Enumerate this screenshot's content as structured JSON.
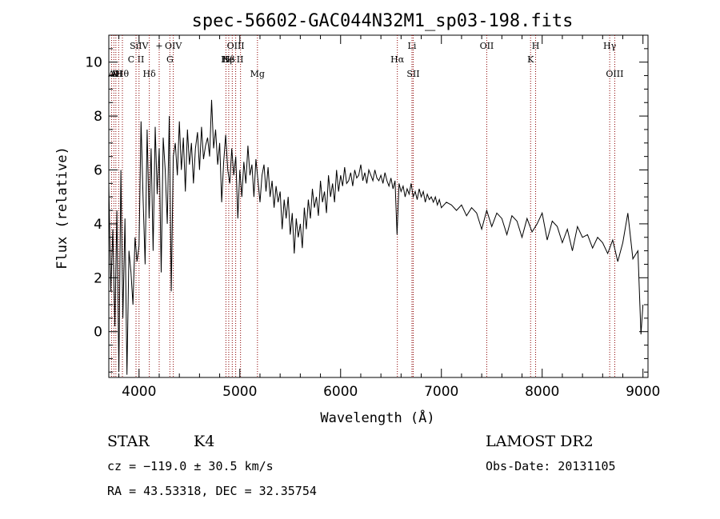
{
  "chart_data": {
    "type": "line",
    "title": "spec-56602-GAC044N32M1_sp03-198.fits",
    "xlabel": "Wavelength (Å)",
    "ylabel": "Flux (relative)",
    "xlim": [
      3700,
      9050
    ],
    "ylim": [
      -1.7,
      11.0
    ],
    "xticks": [
      4000,
      5000,
      6000,
      7000,
      8000,
      9000
    ],
    "yticks": [
      0,
      2,
      4,
      6,
      8,
      10
    ],
    "series": [
      {
        "x": [
          3700,
          3720,
          3740,
          3760,
          3780,
          3800,
          3820,
          3840,
          3860,
          3880,
          3900,
          3920,
          3940,
          3960,
          3980,
          4000,
          4020,
          4040,
          4060,
          4080,
          4100,
          4120,
          4140,
          4160,
          4180,
          4200,
          4220,
          4240,
          4260,
          4280,
          4300,
          4320,
          4340,
          4360,
          4380,
          4400,
          4420,
          4440,
          4460,
          4480,
          4500,
          4520,
          4540,
          4560,
          4580,
          4600,
          4620,
          4640,
          4660,
          4680,
          4700,
          4720,
          4740,
          4760,
          4780,
          4800,
          4820,
          4840,
          4860,
          4880,
          4900,
          4920,
          4940,
          4960,
          4980,
          5000,
          5020,
          5040,
          5060,
          5080,
          5100,
          5120,
          5140,
          5160,
          5180,
          5200,
          5220,
          5240,
          5260,
          5280,
          5300,
          5320,
          5340,
          5360,
          5380,
          5400,
          5420,
          5440,
          5460,
          5480,
          5500,
          5520,
          5540,
          5560,
          5580,
          5600,
          5620,
          5640,
          5660,
          5680,
          5700,
          5720,
          5740,
          5760,
          5780,
          5800,
          5820,
          5840,
          5860,
          5880,
          5900,
          5920,
          5940,
          5960,
          5980,
          6000,
          6020,
          6040,
          6060,
          6080,
          6100,
          6120,
          6140,
          6160,
          6180,
          6200,
          6220,
          6240,
          6260,
          6280,
          6300,
          6320,
          6340,
          6360,
          6380,
          6400,
          6420,
          6440,
          6460,
          6480,
          6500,
          6520,
          6540,
          6560,
          6580,
          6600,
          6620,
          6640,
          6660,
          6680,
          6700,
          6720,
          6740,
          6760,
          6780,
          6800,
          6820,
          6840,
          6860,
          6880,
          6900,
          6920,
          6940,
          6960,
          6980,
          7000,
          7050,
          7100,
          7150,
          7200,
          7250,
          7300,
          7350,
          7400,
          7450,
          7500,
          7550,
          7600,
          7650,
          7700,
          7750,
          7800,
          7850,
          7900,
          7950,
          8000,
          8050,
          8100,
          8150,
          8200,
          8250,
          8300,
          8350,
          8400,
          8450,
          8500,
          8550,
          8600,
          8650,
          8700,
          8750,
          8800,
          8850,
          8900,
          8950,
          8980,
          9000
        ],
        "y": [
          5.5,
          1.5,
          3.8,
          0.2,
          4.5,
          -1.5,
          6.0,
          0.5,
          4.2,
          -1.6,
          3.0,
          2.2,
          1.0,
          3.5,
          2.6,
          3.2,
          7.8,
          5.0,
          2.5,
          7.5,
          4.2,
          6.8,
          3.0,
          7.6,
          5.1,
          6.8,
          2.2,
          7.2,
          6.0,
          4.0,
          8.0,
          1.5,
          6.5,
          7.0,
          5.8,
          7.8,
          6.0,
          7.2,
          5.2,
          7.5,
          6.2,
          7.0,
          5.5,
          6.8,
          7.4,
          6.0,
          7.6,
          6.4,
          6.9,
          7.2,
          6.5,
          8.6,
          6.8,
          7.5,
          6.2,
          7.0,
          4.8,
          6.3,
          7.3,
          6.0,
          5.5,
          6.8,
          5.8,
          6.5,
          4.2,
          6.0,
          5.0,
          6.3,
          5.5,
          6.9,
          5.8,
          6.2,
          5.0,
          6.4,
          5.6,
          4.8,
          5.8,
          6.2,
          5.2,
          6.1,
          5.0,
          5.6,
          4.6,
          5.4,
          4.8,
          5.2,
          3.8,
          4.9,
          4.2,
          5.0,
          3.6,
          4.4,
          2.9,
          4.2,
          3.5,
          4.0,
          3.1,
          4.6,
          3.8,
          4.9,
          4.2,
          5.3,
          4.6,
          5.0,
          4.3,
          5.6,
          4.8,
          5.2,
          4.4,
          5.8,
          5.0,
          5.5,
          4.8,
          6.0,
          5.2,
          5.8,
          5.4,
          6.1,
          5.5,
          5.6,
          5.9,
          5.4,
          6.0,
          5.7,
          5.8,
          6.2,
          5.6,
          5.9,
          5.5,
          6.0,
          5.8,
          5.6,
          6.0,
          5.7,
          5.6,
          5.8,
          5.5,
          5.9,
          5.6,
          5.4,
          5.7,
          5.3,
          5.6,
          3.6,
          5.5,
          5.2,
          5.4,
          5.0,
          5.3,
          5.1,
          5.5,
          5.0,
          5.2,
          4.9,
          5.3,
          5.0,
          5.2,
          4.8,
          5.1,
          4.9,
          5.0,
          4.8,
          5.0,
          4.7,
          4.9,
          4.6,
          4.8,
          4.7,
          4.5,
          4.7,
          4.3,
          4.6,
          4.4,
          3.8,
          4.5,
          3.9,
          4.4,
          4.2,
          3.6,
          4.3,
          4.1,
          3.5,
          4.2,
          3.7,
          4.0,
          4.4,
          3.4,
          4.1,
          3.9,
          3.3,
          3.8,
          3.0,
          3.9,
          3.5,
          3.6,
          3.1,
          3.5,
          3.3,
          2.9,
          3.4,
          2.6,
          3.3,
          4.4,
          2.7,
          3.0,
          -0.1,
          1.0
        ]
      }
    ],
    "lines": [
      {
        "x": 3727,
        "label": "A",
        "row": 3
      },
      {
        "x": 3750,
        "label": "A",
        "row": 3
      },
      {
        "x": 3770,
        "label": "D",
        "row": 3
      },
      {
        "x": 3798,
        "label": "H",
        "row": 3
      },
      {
        "x": 3835,
        "label": "Hθ",
        "row": 3
      },
      {
        "x": 3970,
        "label": "C II",
        "row": 2
      },
      {
        "x": 4000,
        "label": "SiIV",
        "row": 1
      },
      {
        "x": 4102,
        "label": "Hδ",
        "row": 3
      },
      {
        "x": 4200,
        "label": "+",
        "row": 1
      },
      {
        "x": 4306,
        "label": "G",
        "row": 2
      },
      {
        "x": 4340,
        "label": "OIV",
        "row": 1
      },
      {
        "x": 4862,
        "label": "N",
        "row": 2
      },
      {
        "x": 4890,
        "label": "Hβ",
        "row": 2
      },
      {
        "x": 4925,
        "label": "He II",
        "row": 2
      },
      {
        "x": 4959,
        "label": "OIII",
        "row": 1
      },
      {
        "x": 5007,
        "label": "",
        "row": 1
      },
      {
        "x": 5175,
        "label": "Mg",
        "row": 3
      },
      {
        "x": 6563,
        "label": "Hα",
        "row": 2
      },
      {
        "x": 6708,
        "label": "Li",
        "row": 1
      },
      {
        "x": 6720,
        "label": "SII",
        "row": 3
      },
      {
        "x": 7450,
        "label": "OII",
        "row": 1
      },
      {
        "x": 7885,
        "label": "K",
        "row": 2
      },
      {
        "x": 7935,
        "label": "H",
        "row": 1
      },
      {
        "x": 8670,
        "label": "Hγ",
        "row": 1
      },
      {
        "x": 8720,
        "label": "OIII",
        "row": 3
      }
    ],
    "line_color": "#000000",
    "marker_color": "#8b0000"
  },
  "info": {
    "object_type": "STAR",
    "subclass": "K4",
    "survey": "LAMOST DR2",
    "cz": "cz = −119.0 ± 30.5 km/s",
    "obs_date": "Obs-Date: 20131105",
    "coords": "RA =  43.53318, DEC =  32.35754"
  }
}
